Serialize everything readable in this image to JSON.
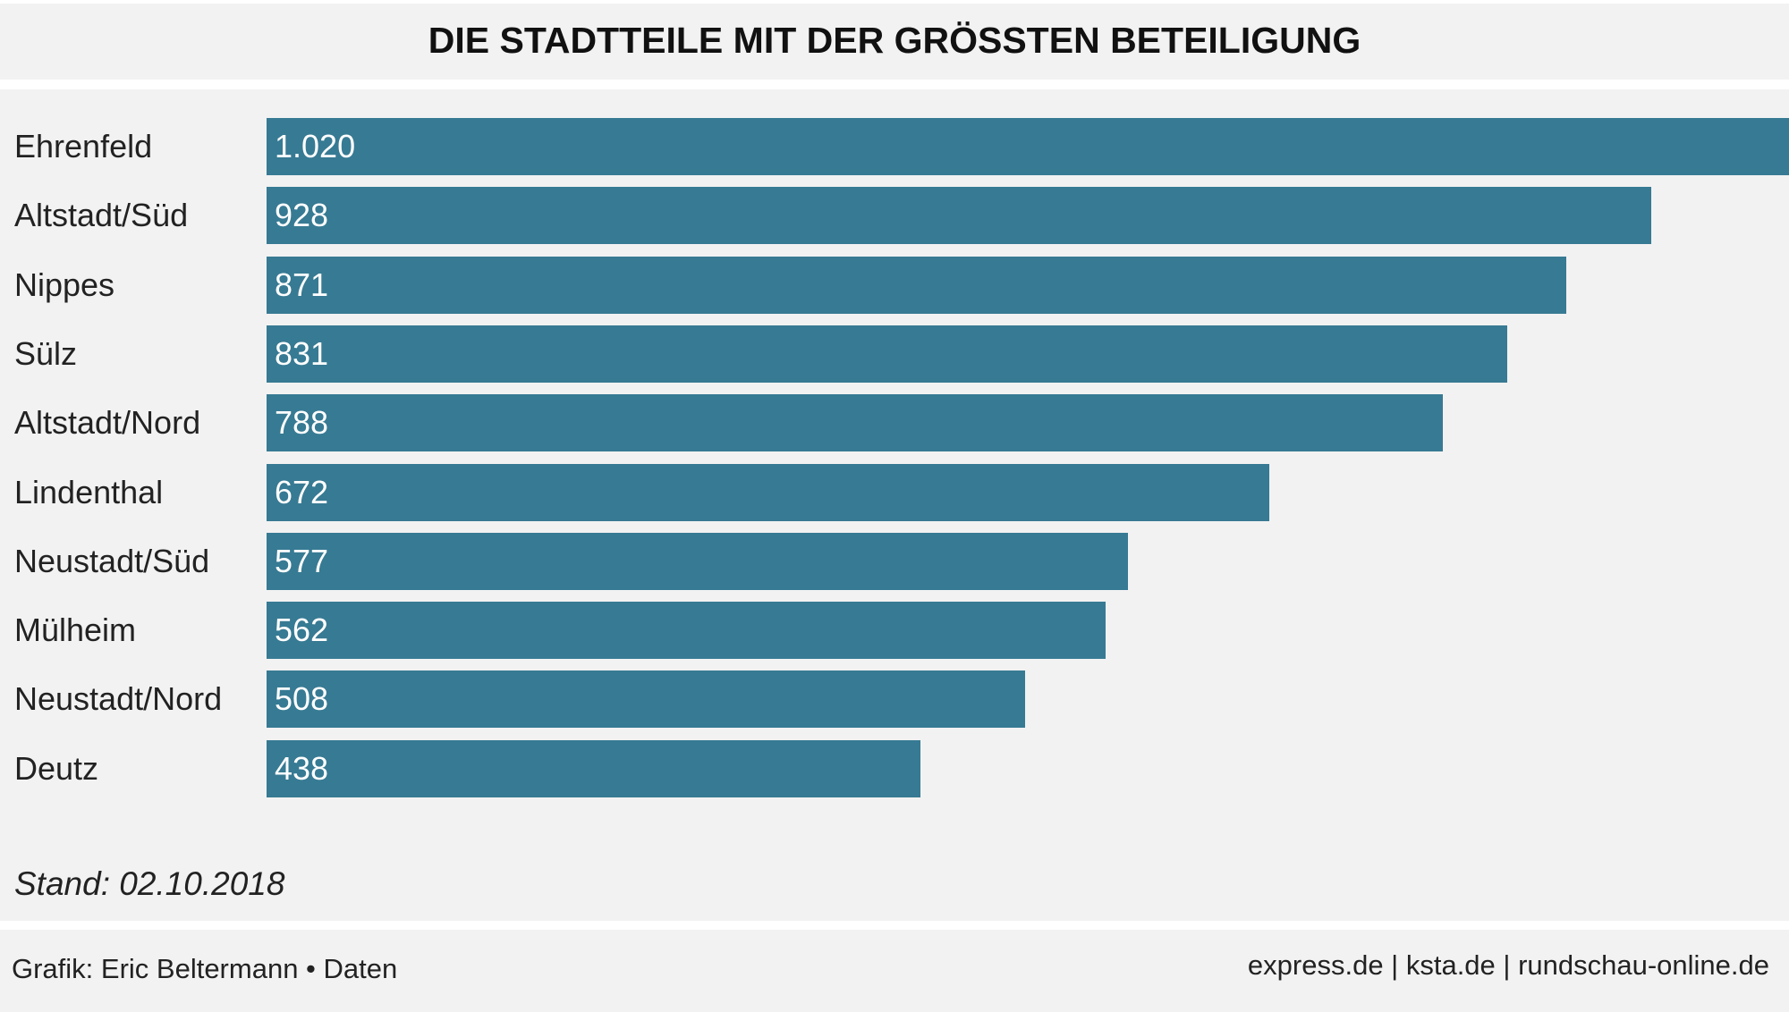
{
  "chart_data": {
    "type": "bar",
    "orientation": "horizontal",
    "title": "DIE STADTTEILE MIT DER GRÖSSTEN BETEILIGUNG",
    "categories": [
      "Ehrenfeld",
      "Altstadt/Süd",
      "Nippes",
      "Sülz",
      "Altstadt/Nord",
      "Lindenthal",
      "Neustadt/Süd",
      "Mülheim",
      "Neustadt/Nord",
      "Deutz"
    ],
    "values": [
      1020,
      928,
      871,
      831,
      788,
      672,
      577,
      562,
      508,
      438
    ],
    "value_labels": [
      "1.020",
      "928",
      "871",
      "831",
      "788",
      "672",
      "577",
      "562",
      "508",
      "438"
    ],
    "xlim": [
      0,
      1020
    ],
    "grid": false,
    "bar_color": "#377a93"
  },
  "note": "Stand: 02.10.2018",
  "footer": {
    "credit": "Grafik: Eric Beltermann • Daten",
    "sites": "express.de | ksta.de | rundschau-online.de"
  }
}
